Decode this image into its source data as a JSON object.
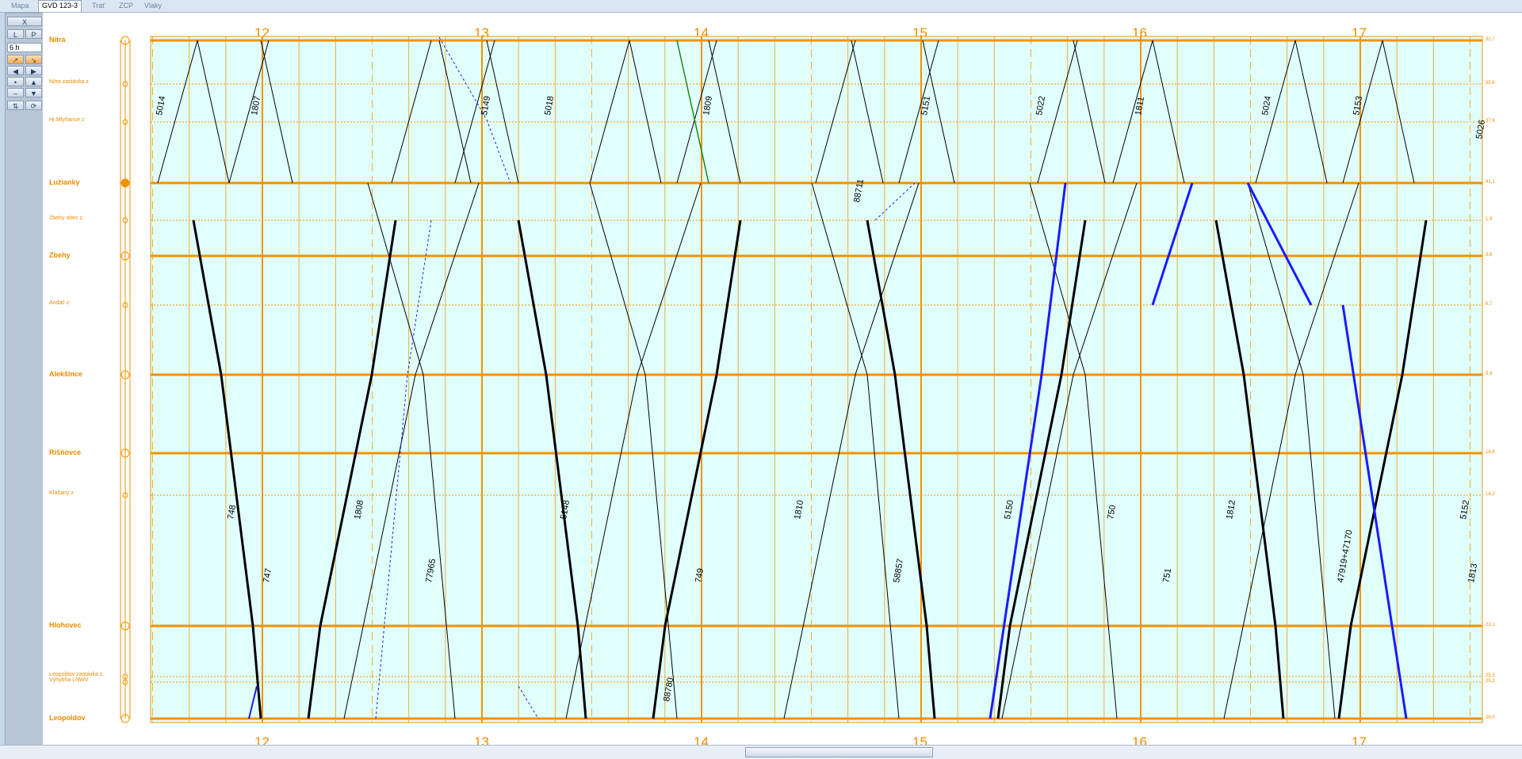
{
  "tabs": [
    {
      "label": "Mapa"
    },
    {
      "label": "GVD 123-3",
      "active": true
    },
    {
      "label": "Trať"
    },
    {
      "label": "ZCP"
    },
    {
      "label": "Vlaky"
    }
  ],
  "toolbar": {
    "close": "X",
    "left": "L",
    "right": "P",
    "period": "6 h"
  },
  "hours": [
    "12",
    "13",
    "14",
    "15",
    "16",
    "17"
  ],
  "stations": [
    {
      "name": "Nitra",
      "major": true,
      "km": "32,7"
    },
    {
      "name": "Nitra zastávka z",
      "major": false,
      "km": "35,6"
    },
    {
      "name": "Hr.Mlyňance z",
      "major": false,
      "km": "37,6"
    },
    {
      "name": "Lužianky",
      "major": true,
      "km": "41,1"
    },
    {
      "name": "Zbehy obec z",
      "major": false,
      "km": "1,9"
    },
    {
      "name": "Zbehy",
      "major": true,
      "km": "3,8"
    },
    {
      "name": "Andač z",
      "major": false,
      "km": "6,7"
    },
    {
      "name": "Alekšince",
      "major": true,
      "km": "9,9"
    },
    {
      "name": "Rišňovce",
      "major": true,
      "km": "14,8"
    },
    {
      "name": "Kľačany z",
      "major": false,
      "km": "16,2"
    },
    {
      "name": "Hlohovec",
      "major": true,
      "km": "23,1"
    },
    {
      "name": "Leopoldov zastávka z",
      "major": false,
      "km": "25,3"
    },
    {
      "name": "Výhybňa LNWV",
      "major": false,
      "km": "25,2"
    },
    {
      "name": "Leopoldov",
      "major": true,
      "km": "26,0"
    }
  ],
  "trains": [
    "5014",
    "1807",
    "5149",
    "5018",
    "1809",
    "5151",
    "5022",
    "1811",
    "5024",
    "5153",
    "5026",
    "88711",
    "748",
    "1808",
    "5148",
    "1810",
    "5150",
    "1812",
    "5152",
    "750",
    "1813",
    "747",
    "749",
    "751",
    "77965",
    "58857",
    "47919+47170",
    "88780"
  ],
  "colors": {
    "orange": "#f39200",
    "grid_fill": "#e0fffb",
    "train": "#000000",
    "special": "#1a1aff",
    "green": "#1a8a1a"
  }
}
